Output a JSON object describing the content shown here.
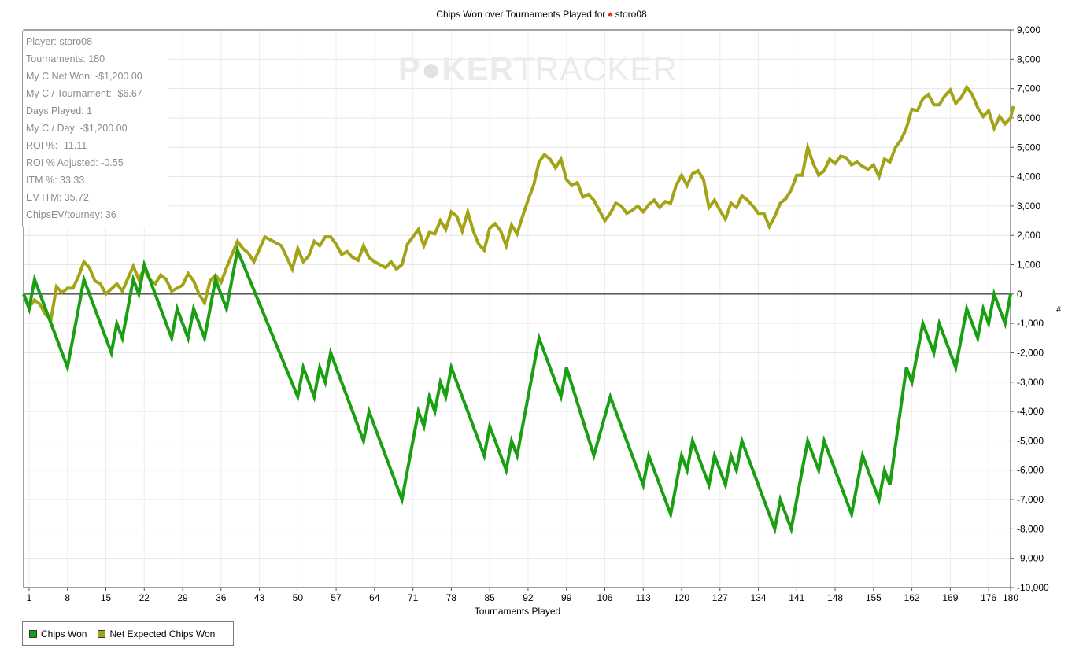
{
  "title": {
    "prefix": "Chips Won over Tournaments Played for",
    "icon": "spade-icon",
    "player": "storo08"
  },
  "watermark": {
    "part1": "P",
    "part2": "KER",
    "part3": "TRACKER"
  },
  "stats": [
    "Player: storo08",
    "Tournaments: 180",
    "My C Net Won: -$1,200.00",
    "My C / Tournament: -$6.67",
    "Days Played: 1",
    "My C / Day: -$1,200.00",
    "ROI %: -11.11",
    "ROI % Adjusted: -0.55",
    "ITM %: 33.33",
    "EV ITM: 35.72",
    "ChipsEV/tourney: 36"
  ],
  "legend": [
    {
      "label": "Chips Won",
      "color": "#1a9e12"
    },
    {
      "label": "Net Expected Chips Won",
      "color": "#a3a318"
    }
  ],
  "chart_data": {
    "type": "line",
    "title": "Chips Won over Tournaments Played for storo08",
    "xlabel": "Tournaments Played",
    "ylabel": "#",
    "xlim": [
      0,
      180
    ],
    "ylim": [
      -10000,
      9000
    ],
    "x_ticks": [
      1,
      8,
      15,
      22,
      29,
      36,
      43,
      50,
      57,
      64,
      71,
      78,
      85,
      92,
      99,
      106,
      113,
      120,
      127,
      134,
      141,
      148,
      155,
      162,
      169,
      176,
      180
    ],
    "y_ticks": [
      9000,
      8000,
      7000,
      6000,
      5000,
      4000,
      3000,
      2000,
      1000,
      0,
      -1000,
      -2000,
      -3000,
      -4000,
      -5000,
      -6000,
      -7000,
      -8000,
      -9000,
      -10000
    ],
    "y_tick_labels": [
      "9,000",
      "8,000",
      "7,000",
      "6,000",
      "5,000",
      "4,000",
      "3,000",
      "2,000",
      "1,000",
      "0",
      "-1,000",
      "-2,000",
      "-3,000",
      "-4,000",
      "-5,000",
      "-6,000",
      "-7,000",
      "-8,000",
      "-9,000",
      "-10,000"
    ],
    "grid": true,
    "legend_position": "bottom-left",
    "series": [
      {
        "name": "Chips Won",
        "color": "#1a9e12",
        "points": [
          [
            0,
            0
          ],
          [
            1,
            -500
          ],
          [
            2,
            500
          ],
          [
            8,
            -2500
          ],
          [
            11,
            500
          ],
          [
            16,
            -2000
          ],
          [
            17,
            -1000
          ],
          [
            18,
            -1500
          ],
          [
            20,
            500
          ],
          [
            21,
            0
          ],
          [
            22,
            1000
          ],
          [
            27,
            -1500
          ],
          [
            28,
            -500
          ],
          [
            30,
            -1500
          ],
          [
            31,
            -500
          ],
          [
            33,
            -1500
          ],
          [
            35,
            500
          ],
          [
            37,
            -500
          ],
          [
            39,
            1500
          ],
          [
            50,
            -3500
          ],
          [
            51,
            -2500
          ],
          [
            53,
            -3500
          ],
          [
            54,
            -2500
          ],
          [
            55,
            -3000
          ],
          [
            56,
            -2000
          ],
          [
            62,
            -5000
          ],
          [
            63,
            -4000
          ],
          [
            69,
            -7000
          ],
          [
            72,
            -4000
          ],
          [
            73,
            -4500
          ],
          [
            74,
            -3500
          ],
          [
            75,
            -4000
          ],
          [
            76,
            -3000
          ],
          [
            77,
            -3500
          ],
          [
            78,
            -2500
          ],
          [
            84,
            -5500
          ],
          [
            85,
            -4500
          ],
          [
            88,
            -6000
          ],
          [
            89,
            -5000
          ],
          [
            90,
            -5500
          ],
          [
            94,
            -1500
          ],
          [
            98,
            -3500
          ],
          [
            99,
            -2500
          ],
          [
            104,
            -5500
          ],
          [
            107,
            -3500
          ],
          [
            113,
            -6500
          ],
          [
            114,
            -5500
          ],
          [
            118,
            -7500
          ],
          [
            120,
            -5500
          ],
          [
            121,
            -6000
          ],
          [
            122,
            -5000
          ],
          [
            125,
            -6500
          ],
          [
            126,
            -5500
          ],
          [
            128,
            -6500
          ],
          [
            129,
            -5500
          ],
          [
            130,
            -6000
          ],
          [
            131,
            -5000
          ],
          [
            137,
            -8000
          ],
          [
            138,
            -7000
          ],
          [
            140,
            -8000
          ],
          [
            143,
            -5000
          ],
          [
            145,
            -6000
          ],
          [
            146,
            -5000
          ],
          [
            151,
            -7500
          ],
          [
            153,
            -5500
          ],
          [
            156,
            -7000
          ],
          [
            157,
            -6000
          ],
          [
            158,
            -6500
          ],
          [
            161,
            -2500
          ],
          [
            162,
            -3000
          ],
          [
            164,
            -1000
          ],
          [
            166,
            -2000
          ],
          [
            167,
            -1000
          ],
          [
            170,
            -2500
          ],
          [
            172,
            -500
          ],
          [
            174,
            -1500
          ],
          [
            175,
            -500
          ],
          [
            176,
            -1000
          ],
          [
            177,
            0
          ],
          [
            179,
            -1000
          ],
          [
            180,
            0
          ]
        ]
      },
      {
        "name": "Net Expected Chips Won",
        "color": "#a3a318",
        "points": [
          [
            0,
            0
          ],
          [
            1,
            -450
          ],
          [
            2,
            -200
          ],
          [
            3,
            -350
          ],
          [
            4,
            -700
          ],
          [
            5,
            -850
          ],
          [
            6,
            250
          ],
          [
            7,
            50
          ],
          [
            8,
            200
          ],
          [
            9,
            200
          ],
          [
            10,
            600
          ],
          [
            11,
            1100
          ],
          [
            12,
            900
          ],
          [
            13,
            450
          ],
          [
            14,
            350
          ],
          [
            15,
            0
          ],
          [
            17,
            350
          ],
          [
            18,
            100
          ],
          [
            20,
            950
          ],
          [
            21,
            500
          ],
          [
            22,
            850
          ],
          [
            23,
            500
          ],
          [
            24,
            350
          ],
          [
            25,
            650
          ],
          [
            26,
            500
          ],
          [
            27,
            100
          ],
          [
            29,
            300
          ],
          [
            30,
            700
          ],
          [
            31,
            450
          ],
          [
            32,
            0
          ],
          [
            33,
            -300
          ],
          [
            34,
            450
          ],
          [
            35,
            650
          ],
          [
            36,
            400
          ],
          [
            37,
            900
          ],
          [
            39,
            1800
          ],
          [
            40,
            1550
          ],
          [
            41,
            1400
          ],
          [
            42,
            1100
          ],
          [
            44,
            1950
          ],
          [
            46,
            1750
          ],
          [
            47,
            1650
          ],
          [
            48,
            1250
          ],
          [
            49,
            850
          ],
          [
            50,
            1550
          ],
          [
            51,
            1100
          ],
          [
            52,
            1300
          ],
          [
            53,
            1800
          ],
          [
            54,
            1650
          ],
          [
            55,
            1950
          ],
          [
            56,
            1950
          ],
          [
            57,
            1700
          ],
          [
            58,
            1350
          ],
          [
            59,
            1450
          ],
          [
            60,
            1250
          ],
          [
            61,
            1150
          ],
          [
            62,
            1650
          ],
          [
            63,
            1250
          ],
          [
            64,
            1100
          ],
          [
            66,
            900
          ],
          [
            67,
            1100
          ],
          [
            68,
            850
          ],
          [
            69,
            1000
          ],
          [
            70,
            1700
          ],
          [
            71,
            1950
          ],
          [
            72,
            2200
          ],
          [
            73,
            1650
          ],
          [
            74,
            2100
          ],
          [
            75,
            2050
          ],
          [
            76,
            2500
          ],
          [
            77,
            2200
          ],
          [
            78,
            2800
          ],
          [
            79,
            2650
          ],
          [
            80,
            2150
          ],
          [
            81,
            2800
          ],
          [
            82,
            2150
          ],
          [
            83,
            1700
          ],
          [
            84,
            1500
          ],
          [
            85,
            2250
          ],
          [
            86,
            2400
          ],
          [
            87,
            2150
          ],
          [
            88,
            1650
          ],
          [
            89,
            2350
          ],
          [
            90,
            2050
          ],
          [
            91,
            2650
          ],
          [
            92,
            3200
          ],
          [
            93,
            3700
          ],
          [
            94,
            4500
          ],
          [
            95,
            4750
          ],
          [
            96,
            4600
          ],
          [
            97,
            4300
          ],
          [
            98,
            4600
          ],
          [
            99,
            3900
          ],
          [
            100,
            3700
          ],
          [
            101,
            3800
          ],
          [
            102,
            3300
          ],
          [
            103,
            3400
          ],
          [
            104,
            3200
          ],
          [
            105,
            2850
          ],
          [
            106,
            2500
          ],
          [
            107,
            2750
          ],
          [
            108,
            3100
          ],
          [
            109,
            3000
          ],
          [
            110,
            2750
          ],
          [
            111,
            2850
          ],
          [
            112,
            3000
          ],
          [
            113,
            2800
          ],
          [
            114,
            3050
          ],
          [
            115,
            3200
          ],
          [
            116,
            2950
          ],
          [
            117,
            3150
          ],
          [
            118,
            3100
          ],
          [
            119,
            3700
          ],
          [
            120,
            4050
          ],
          [
            121,
            3700
          ],
          [
            122,
            4100
          ],
          [
            123,
            4200
          ],
          [
            124,
            3900
          ],
          [
            125,
            2950
          ],
          [
            126,
            3200
          ],
          [
            127,
            2850
          ],
          [
            128,
            2550
          ],
          [
            129,
            3100
          ],
          [
            130,
            2950
          ],
          [
            131,
            3350
          ],
          [
            132,
            3200
          ],
          [
            133,
            3000
          ],
          [
            134,
            2750
          ],
          [
            135,
            2750
          ],
          [
            136,
            2300
          ],
          [
            137,
            2650
          ],
          [
            138,
            3100
          ],
          [
            139,
            3250
          ],
          [
            140,
            3550
          ],
          [
            141,
            4050
          ],
          [
            142,
            4050
          ],
          [
            143,
            5000
          ],
          [
            144,
            4450
          ],
          [
            145,
            4050
          ],
          [
            146,
            4200
          ],
          [
            147,
            4600
          ],
          [
            148,
            4450
          ],
          [
            149,
            4700
          ],
          [
            150,
            4650
          ],
          [
            151,
            4400
          ],
          [
            152,
            4500
          ],
          [
            153,
            4350
          ],
          [
            154,
            4250
          ],
          [
            155,
            4400
          ],
          [
            156,
            4000
          ],
          [
            157,
            4600
          ],
          [
            158,
            4500
          ],
          [
            159,
            5000
          ],
          [
            160,
            5250
          ],
          [
            161,
            5650
          ],
          [
            162,
            6300
          ],
          [
            163,
            6250
          ],
          [
            164,
            6650
          ],
          [
            165,
            6800
          ],
          [
            166,
            6450
          ],
          [
            167,
            6450
          ],
          [
            168,
            6750
          ],
          [
            169,
            6950
          ],
          [
            170,
            6500
          ],
          [
            171,
            6700
          ],
          [
            172,
            7050
          ],
          [
            173,
            6800
          ],
          [
            174,
            6350
          ],
          [
            175,
            6050
          ],
          [
            176,
            6250
          ],
          [
            177,
            5650
          ],
          [
            178,
            6050
          ],
          [
            179,
            5800
          ],
          [
            180,
            6000
          ],
          [
            181,
            6400
          ]
        ]
      }
    ]
  }
}
